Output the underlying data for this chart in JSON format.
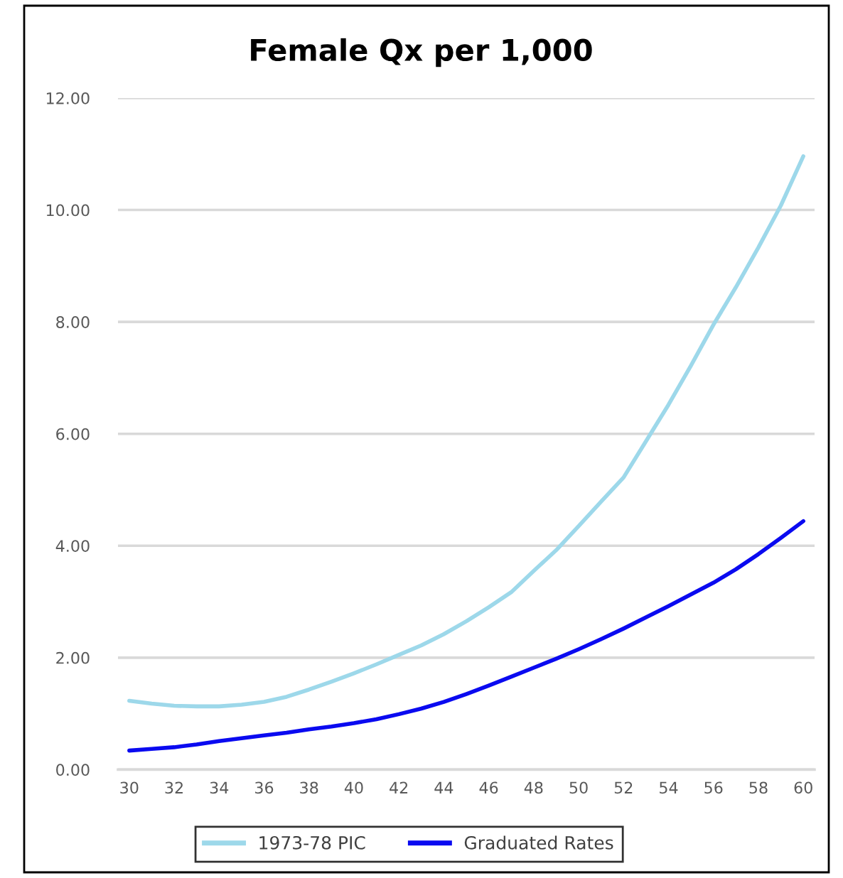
{
  "chart_data": {
    "type": "line",
    "title": "Female Qx per 1,000",
    "x": [
      30,
      31,
      32,
      33,
      34,
      35,
      36,
      37,
      38,
      39,
      40,
      41,
      42,
      43,
      44,
      45,
      46,
      47,
      48,
      49,
      50,
      51,
      52,
      53,
      54,
      55,
      56,
      57,
      58,
      59,
      60
    ],
    "xlim": [
      29.5,
      60.5
    ],
    "xticks": [
      30,
      32,
      34,
      36,
      38,
      40,
      42,
      44,
      46,
      48,
      50,
      52,
      54,
      56,
      58,
      60
    ],
    "ylim": [
      0,
      12
    ],
    "yticks": [
      {
        "value": 0,
        "label": "0.00"
      },
      {
        "value": 2,
        "label": "2.00"
      },
      {
        "value": 4,
        "label": "4.00"
      },
      {
        "value": 6,
        "label": "6.00"
      },
      {
        "value": 8,
        "label": "8.00"
      },
      {
        "value": 10,
        "label": "10.00"
      },
      {
        "value": 12,
        "label": "12.00"
      }
    ],
    "grid": "y",
    "legend": "bottom",
    "series": [
      {
        "name": "1973-78 PIC",
        "color": "#9dd8ea",
        "values": [
          1.23,
          1.18,
          1.14,
          1.13,
          1.13,
          1.16,
          1.21,
          1.3,
          1.43,
          1.57,
          1.72,
          1.88,
          2.05,
          2.22,
          2.42,
          2.65,
          2.9,
          3.17,
          3.55,
          3.92,
          4.35,
          4.79,
          5.22,
          5.87,
          6.52,
          7.22,
          7.95,
          8.62,
          9.33,
          10.08,
          10.96
        ]
      },
      {
        "name": "Graduated Rates",
        "color": "#0a0af0",
        "values": [
          0.34,
          0.37,
          0.4,
          0.45,
          0.51,
          0.56,
          0.61,
          0.66,
          0.72,
          0.77,
          0.83,
          0.9,
          0.99,
          1.09,
          1.21,
          1.35,
          1.5,
          1.66,
          1.82,
          1.98,
          2.15,
          2.33,
          2.52,
          2.72,
          2.92,
          3.13,
          3.34,
          3.58,
          3.85,
          4.14,
          4.44
        ]
      }
    ]
  }
}
